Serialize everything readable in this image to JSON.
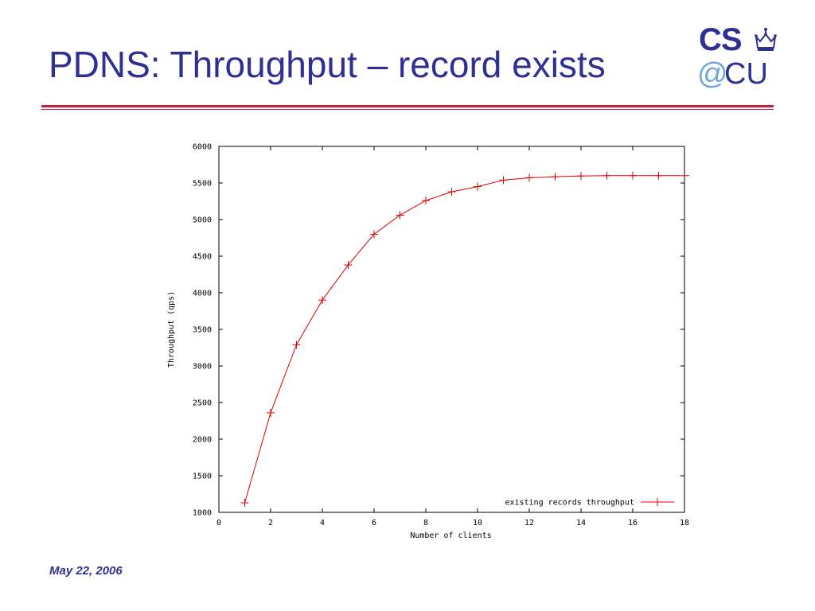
{
  "slide": {
    "title": "PDNS: Throughput – record exists",
    "date": "May 22, 2006"
  },
  "logo": {
    "cs": "CS",
    "at": "@",
    "cu": "CU",
    "icon": "crown-icon",
    "colors": {
      "primary": "#2e3192",
      "at": "#6fa8dc"
    }
  },
  "colors": {
    "title": "#2e3192",
    "rule": "#c81e3c",
    "series": "#e00000"
  },
  "chart_data": {
    "type": "line",
    "title": "",
    "xlabel": "Number of clients",
    "ylabel": "Throughput (qps)",
    "xlim": [
      0,
      18
    ],
    "ylim": [
      1000,
      6000
    ],
    "xticks": [
      0,
      2,
      4,
      6,
      8,
      10,
      12,
      14,
      16,
      18
    ],
    "yticks": [
      1000,
      1500,
      2000,
      2500,
      3000,
      3500,
      4000,
      4500,
      5000,
      5500,
      6000
    ],
    "grid": false,
    "legend": "bottom-right",
    "series": [
      {
        "name": "existing records throughput",
        "color": "#e00000",
        "marker": "plus",
        "x": [
          1,
          2,
          3,
          4,
          5,
          6,
          7,
          8,
          9,
          10,
          11,
          12,
          13,
          14,
          15,
          16,
          17
        ],
        "y": [
          1130,
          2360,
          3290,
          3900,
          4380,
          4800,
          5060,
          5260,
          5380,
          5450,
          5540,
          5570,
          5585,
          5595,
          5600,
          5600,
          5600
        ],
        "line_extends_to": 18
      }
    ]
  }
}
